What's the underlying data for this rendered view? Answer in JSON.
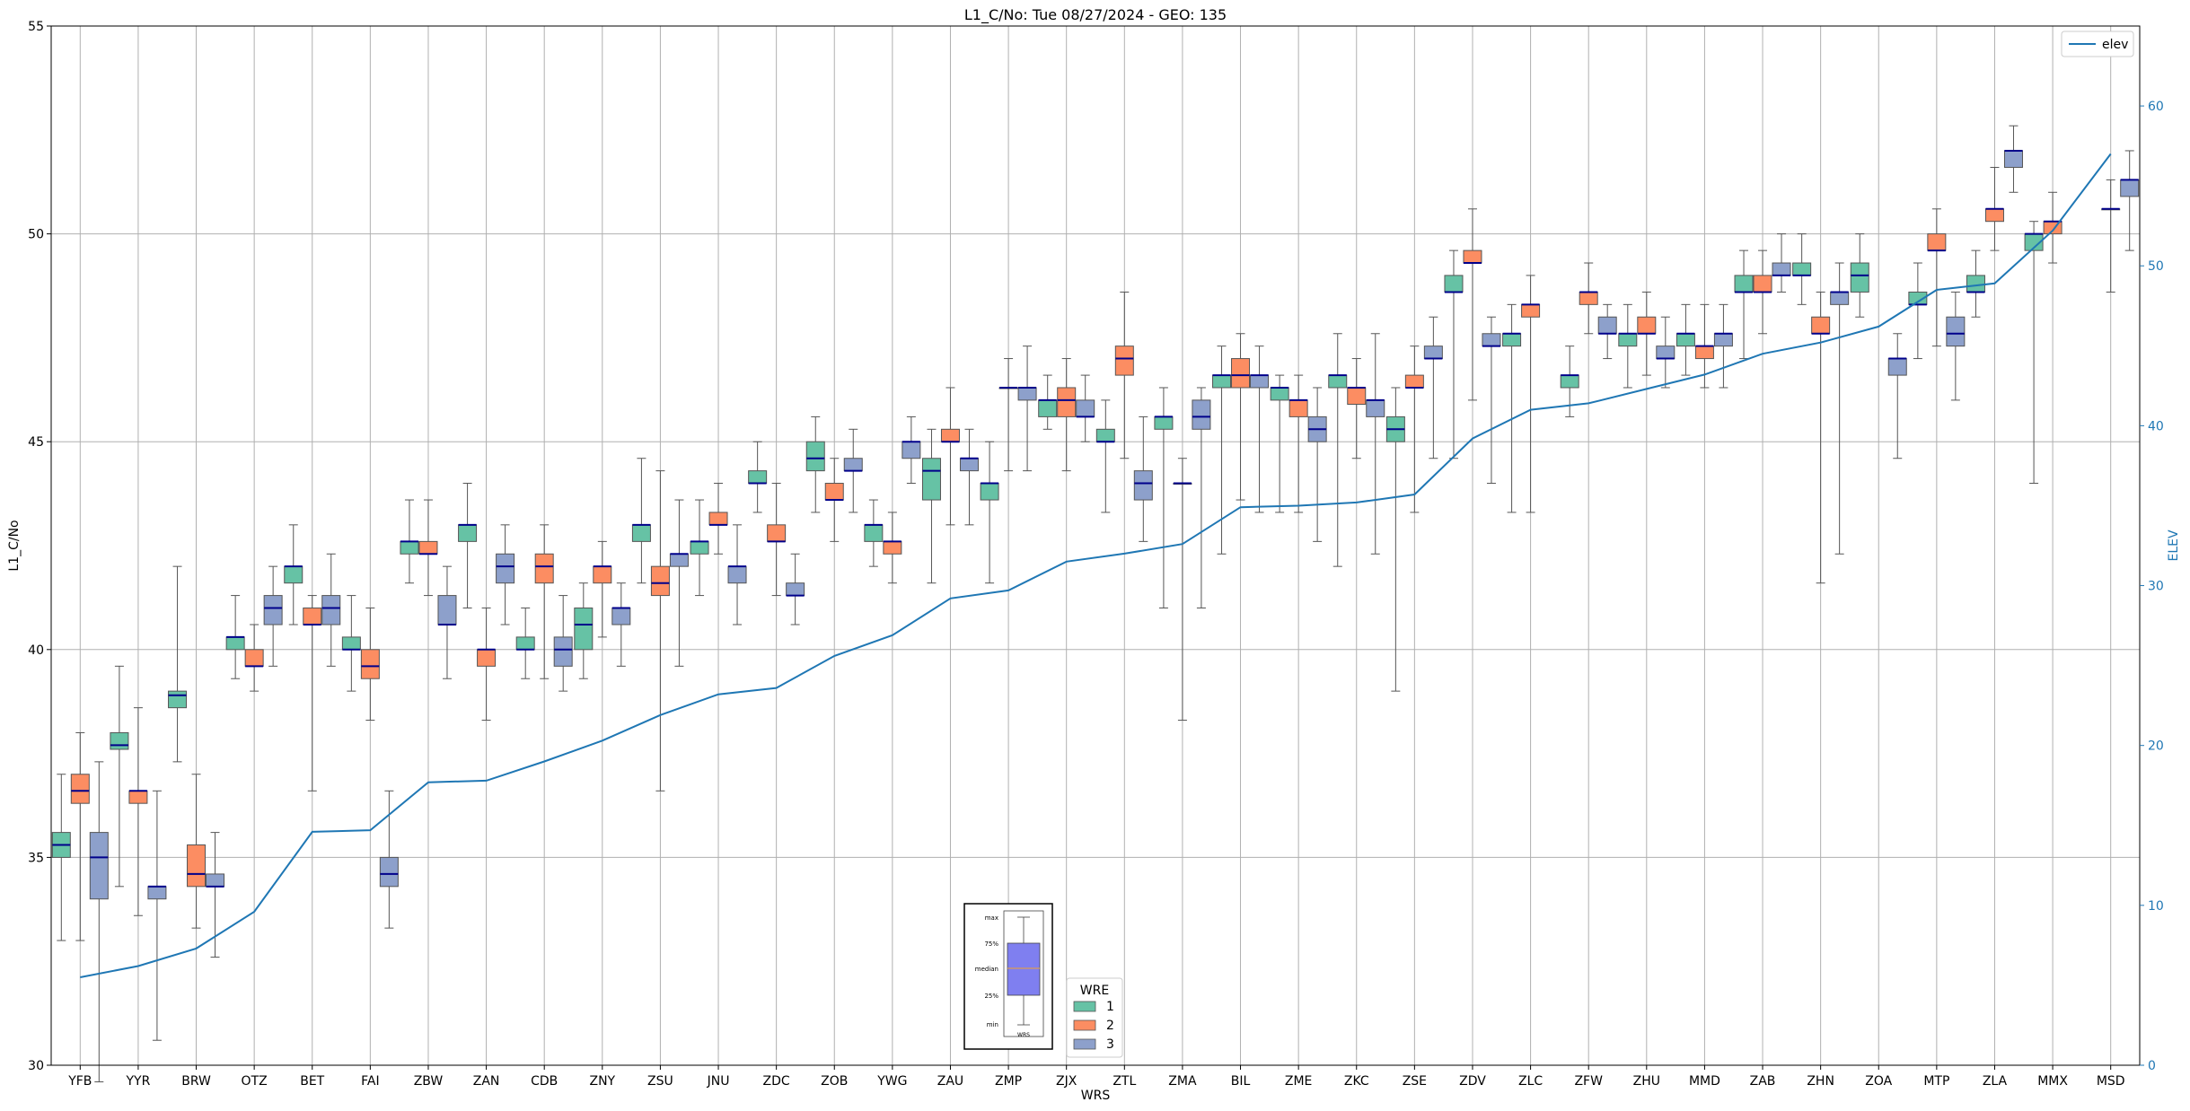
{
  "chart_data": {
    "type": "box",
    "title": "L1_C/No: Tue 08/27/2024 - GEO: 135",
    "xlabel": "WRS",
    "ylabel": "L1_C/No",
    "y2label": "ELEV",
    "ylim": [
      30,
      55
    ],
    "y2lim": [
      0,
      65
    ],
    "yticks": [
      30,
      35,
      40,
      45,
      50,
      55
    ],
    "y2ticks": [
      0,
      10,
      20,
      30,
      40,
      50,
      60
    ],
    "grid": true,
    "categories": [
      "YFB",
      "YYR",
      "BRW",
      "OTZ",
      "BET",
      "FAI",
      "ZBW",
      "ZAN",
      "CDB",
      "ZNY",
      "ZSU",
      "JNU",
      "ZDC",
      "ZOB",
      "YWG",
      "ZAU",
      "ZMP",
      "ZJX",
      "ZTL",
      "ZMA",
      "BIL",
      "ZME",
      "ZKC",
      "ZSE",
      "ZDV",
      "ZLC",
      "ZFW",
      "ZHU",
      "MMD",
      "ZAB",
      "ZHN",
      "ZOA",
      "MTP",
      "ZLA",
      "MMX",
      "MSD"
    ],
    "series": [
      {
        "name": "1",
        "color": "#66c2a5",
        "boxes": [
          [
            33.0,
            35.0,
            35.3,
            35.6,
            37.0
          ],
          [
            34.3,
            37.6,
            37.7,
            38.0,
            39.6
          ],
          [
            37.3,
            38.6,
            38.9,
            39.0,
            42.0
          ],
          [
            39.3,
            40.0,
            40.3,
            40.3,
            41.3
          ],
          [
            40.6,
            41.6,
            42.0,
            42.0,
            43.0
          ],
          [
            39.0,
            40.0,
            40.0,
            40.3,
            41.3
          ],
          [
            41.6,
            42.3,
            42.6,
            42.6,
            43.6
          ],
          [
            41.0,
            42.6,
            43.0,
            43.0,
            44.0
          ],
          [
            39.3,
            40.0,
            40.0,
            40.3,
            41.0
          ],
          [
            39.3,
            40.0,
            40.6,
            41.0,
            41.6
          ],
          [
            41.6,
            42.6,
            43.0,
            43.0,
            44.6
          ],
          [
            41.3,
            42.3,
            42.6,
            42.6,
            43.6
          ],
          [
            43.3,
            44.0,
            44.0,
            44.3,
            45.0
          ],
          [
            43.3,
            44.3,
            44.6,
            45.0,
            45.6
          ],
          [
            42.0,
            42.6,
            43.0,
            43.0,
            43.6
          ],
          [
            41.6,
            43.6,
            44.3,
            44.6,
            45.3
          ],
          [
            41.6,
            43.6,
            44.0,
            44.0,
            45.0
          ],
          [
            45.3,
            45.6,
            46.0,
            46.0,
            46.6
          ],
          [
            43.3,
            45.0,
            45.0,
            45.3,
            46.0
          ],
          [
            41.0,
            45.3,
            45.6,
            45.6,
            46.3
          ],
          [
            42.3,
            46.3,
            46.6,
            46.6,
            47.3
          ],
          [
            43.3,
            46.0,
            46.3,
            46.3,
            46.6
          ],
          [
            42.0,
            46.3,
            46.6,
            46.6,
            47.6
          ],
          [
            39.0,
            45.0,
            45.3,
            45.6,
            46.3
          ],
          [
            44.6,
            48.6,
            48.6,
            49.0,
            49.6
          ],
          [
            43.3,
            47.3,
            47.6,
            47.6,
            48.3
          ],
          [
            45.6,
            46.3,
            46.6,
            46.6,
            47.3
          ],
          [
            46.3,
            47.3,
            47.6,
            47.6,
            48.3
          ],
          [
            46.6,
            47.3,
            47.6,
            47.6,
            48.3
          ],
          [
            47.0,
            48.6,
            48.6,
            49.0,
            49.6
          ],
          [
            48.3,
            49.0,
            49.0,
            49.3,
            50.0
          ],
          [
            48.0,
            48.6,
            49.0,
            49.3,
            50.0
          ],
          [
            47.0,
            48.3,
            48.3,
            48.6,
            49.3
          ],
          [
            48.0,
            48.6,
            48.6,
            49.0,
            49.6
          ],
          [
            44.0,
            49.6,
            50.0,
            50.0,
            50.3
          ],
          [
            null,
            null,
            null,
            null,
            null
          ]
        ]
      },
      {
        "name": "2",
        "color": "#fc8d62",
        "boxes": [
          [
            33.0,
            36.3,
            36.6,
            37.0,
            38.0
          ],
          [
            33.6,
            36.3,
            36.6,
            36.6,
            38.6
          ],
          [
            33.3,
            34.3,
            34.6,
            35.3,
            37.0
          ],
          [
            39.0,
            39.6,
            39.6,
            40.0,
            40.6
          ],
          [
            36.6,
            40.6,
            40.6,
            41.0,
            41.3
          ],
          [
            38.3,
            39.3,
            39.6,
            40.0,
            41.0
          ],
          [
            41.3,
            42.3,
            42.3,
            42.6,
            43.6
          ],
          [
            38.3,
            39.6,
            40.0,
            40.0,
            41.0
          ],
          [
            39.3,
            41.6,
            42.0,
            42.3,
            43.0
          ],
          [
            40.3,
            41.6,
            42.0,
            42.0,
            42.6
          ],
          [
            36.6,
            41.3,
            41.6,
            42.0,
            44.3
          ],
          [
            42.3,
            43.0,
            43.0,
            43.3,
            44.0
          ],
          [
            41.3,
            42.6,
            42.6,
            43.0,
            44.0
          ],
          [
            42.6,
            43.6,
            43.6,
            44.0,
            44.6
          ],
          [
            41.6,
            42.3,
            42.6,
            42.6,
            43.3
          ],
          [
            43.0,
            45.0,
            45.0,
            45.3,
            46.3
          ],
          [
            44.3,
            46.3,
            46.3,
            46.3,
            47.0
          ],
          [
            44.3,
            45.6,
            46.0,
            46.3,
            47.0
          ],
          [
            44.6,
            46.6,
            47.0,
            47.3,
            48.6
          ],
          [
            38.3,
            44.0,
            44.0,
            44.0,
            44.6
          ],
          [
            43.6,
            46.3,
            46.6,
            47.0,
            47.6
          ],
          [
            43.3,
            45.6,
            46.0,
            46.0,
            46.6
          ],
          [
            44.6,
            45.9,
            46.3,
            46.3,
            47.0
          ],
          [
            43.3,
            46.3,
            46.3,
            46.6,
            47.3
          ],
          [
            46.0,
            49.3,
            49.3,
            49.6,
            50.6
          ],
          [
            43.3,
            48.0,
            48.3,
            48.3,
            49.0
          ],
          [
            47.6,
            48.3,
            48.6,
            48.6,
            49.3
          ],
          [
            46.6,
            47.6,
            47.6,
            48.0,
            48.6
          ],
          [
            46.3,
            47.0,
            47.3,
            47.3,
            48.3
          ],
          [
            47.6,
            48.6,
            48.6,
            49.0,
            49.6
          ],
          [
            41.6,
            47.6,
            47.6,
            48.0,
            48.6
          ],
          [
            null,
            null,
            null,
            null,
            null
          ],
          [
            47.3,
            49.6,
            49.6,
            50.0,
            50.6
          ],
          [
            49.6,
            50.3,
            50.6,
            50.6,
            51.6
          ],
          [
            49.3,
            50.0,
            50.3,
            50.3,
            51.0
          ],
          [
            48.6,
            50.6,
            50.6,
            50.6,
            51.3
          ]
        ]
      },
      {
        "name": "3",
        "color": "#8da0cb",
        "boxes": [
          [
            29.6,
            34.0,
            35.0,
            35.6,
            37.3
          ],
          [
            30.6,
            34.0,
            34.3,
            34.3,
            36.6
          ],
          [
            32.6,
            34.3,
            34.3,
            34.6,
            35.6
          ],
          [
            39.6,
            40.6,
            41.0,
            41.3,
            42.0
          ],
          [
            39.6,
            40.6,
            41.0,
            41.3,
            42.3
          ],
          [
            33.3,
            34.3,
            34.6,
            35.0,
            36.6
          ],
          [
            39.3,
            40.6,
            40.6,
            41.3,
            42.0
          ],
          [
            40.6,
            41.6,
            42.0,
            42.3,
            43.0
          ],
          [
            39.0,
            39.6,
            40.0,
            40.3,
            41.3
          ],
          [
            39.6,
            40.6,
            41.0,
            41.0,
            41.6
          ],
          [
            39.6,
            42.0,
            42.3,
            42.3,
            43.6
          ],
          [
            40.6,
            41.6,
            42.0,
            42.0,
            43.0
          ],
          [
            40.6,
            41.3,
            41.3,
            41.6,
            42.3
          ],
          [
            43.3,
            44.3,
            44.3,
            44.6,
            45.3
          ],
          [
            44.0,
            44.6,
            45.0,
            45.0,
            45.6
          ],
          [
            43.0,
            44.3,
            44.6,
            44.6,
            45.3
          ],
          [
            44.3,
            46.0,
            46.3,
            46.3,
            47.3
          ],
          [
            45.0,
            45.6,
            45.6,
            46.0,
            46.6
          ],
          [
            42.6,
            43.6,
            44.0,
            44.3,
            45.6
          ],
          [
            41.0,
            45.3,
            45.6,
            46.0,
            46.3
          ],
          [
            43.3,
            46.3,
            46.6,
            46.6,
            47.3
          ],
          [
            42.6,
            45.0,
            45.3,
            45.6,
            46.3
          ],
          [
            42.3,
            45.6,
            46.0,
            46.0,
            47.6
          ],
          [
            44.6,
            47.0,
            47.0,
            47.3,
            48.0
          ],
          [
            44.0,
            47.3,
            47.3,
            47.6,
            48.0
          ],
          [
            null,
            null,
            null,
            null,
            null
          ],
          [
            47.0,
            47.6,
            47.6,
            48.0,
            48.3
          ],
          [
            46.3,
            47.0,
            47.0,
            47.3,
            48.0
          ],
          [
            46.3,
            47.3,
            47.6,
            47.6,
            48.3
          ],
          [
            48.6,
            49.0,
            49.0,
            49.3,
            50.0
          ],
          [
            42.3,
            48.3,
            48.6,
            48.6,
            49.3
          ],
          [
            44.6,
            46.6,
            47.0,
            47.0,
            47.6
          ],
          [
            46.0,
            47.3,
            47.6,
            48.0,
            48.6
          ],
          [
            51.0,
            51.6,
            52.0,
            52.0,
            52.6
          ],
          [
            null,
            null,
            null,
            null,
            null
          ],
          [
            49.6,
            50.9,
            51.3,
            51.3,
            52.0
          ]
        ]
      }
    ],
    "elev": {
      "name": "elev",
      "color": "#1f77b4",
      "values": [
        5.5,
        6.2,
        7.3,
        9.6,
        14.6,
        14.7,
        17.7,
        17.8,
        19.0,
        20.3,
        21.9,
        23.2,
        23.6,
        25.6,
        26.9,
        29.2,
        29.7,
        31.5,
        32.0,
        32.6,
        34.9,
        35.0,
        35.2,
        35.7,
        39.2,
        41.0,
        41.4,
        42.3,
        43.2,
        44.5,
        45.2,
        46.2,
        48.5,
        48.9,
        52.2,
        57.0
      ]
    },
    "legend_elev": {
      "label": "elev",
      "position": "top-right"
    },
    "legend_wre": {
      "title": "WRE",
      "items": [
        "1",
        "2",
        "3"
      ],
      "position": "bottom-center"
    },
    "inset_key": {
      "labels": [
        "max",
        "75%",
        "median",
        "25%",
        "min"
      ],
      "xlabel": "WRS"
    }
  }
}
